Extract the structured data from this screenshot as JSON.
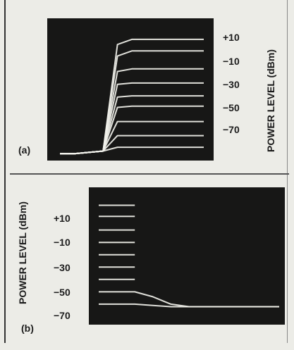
{
  "chart_data": [
    {
      "type": "line",
      "panel_label": "(a)",
      "ylabel": "POWER LEVEL (dBm)",
      "ylabel_side": "right",
      "yticks": [
        "+10",
        "−10",
        "−30",
        "−50",
        "−70"
      ],
      "ytick_values": [
        10,
        -10,
        -30,
        -50,
        -70
      ],
      "ylim": [
        -82,
        20
      ],
      "x": [
        0,
        1,
        2,
        3,
        4,
        5,
        6,
        7,
        8,
        9,
        10
      ],
      "xlim": [
        0,
        10
      ],
      "series": [
        {
          "values": [
            -81,
            -81,
            -80,
            -79,
            4,
            8,
            8,
            8,
            8,
            8,
            8
          ]
        },
        {
          "values": [
            -81,
            -81,
            -80,
            -79,
            -5,
            -1,
            -1,
            -1,
            -1,
            -1,
            -1
          ]
        },
        {
          "values": [
            -81,
            -81,
            -80,
            -79,
            -17,
            -15,
            -15,
            -15,
            -15,
            -15,
            -15
          ]
        },
        {
          "values": [
            -81,
            -81,
            -80,
            -79,
            -27,
            -26,
            -26,
            -26,
            -26,
            -26,
            -26
          ]
        },
        {
          "values": [
            -81,
            -81,
            -80,
            -79,
            -37,
            -36,
            -36,
            -36,
            -36,
            -36,
            -36
          ]
        },
        {
          "values": [
            -81,
            -81,
            -80,
            -79,
            -45,
            -44,
            -44,
            -44,
            -44,
            -44,
            -44
          ]
        },
        {
          "values": [
            -81,
            -81,
            -80,
            -79,
            -56,
            -56,
            -56,
            -56,
            -56,
            -56,
            -56
          ]
        },
        {
          "values": [
            -81,
            -81,
            -80,
            -79,
            -67,
            -67,
            -67,
            -67,
            -67,
            -67,
            -67
          ]
        },
        {
          "values": [
            -81,
            -81,
            -80,
            -79,
            -76,
            -76,
            -76,
            -76,
            -76,
            -76,
            -76
          ]
        }
      ],
      "trace_color": "#f2f2ec",
      "background_color": "#171716",
      "grid": false
    },
    {
      "type": "line",
      "panel_label": "(b)",
      "ylabel": "POWER LEVEL (dBm)",
      "ylabel_side": "left",
      "yticks": [
        "+10",
        "−10",
        "−30",
        "−50",
        "−70"
      ],
      "ytick_values": [
        10,
        -10,
        -30,
        -50,
        -70
      ],
      "ylim": [
        -82,
        20
      ],
      "x": [
        0,
        1,
        2,
        3,
        4,
        5,
        6,
        7,
        8,
        9,
        10
      ],
      "xlim": [
        0,
        10
      ],
      "series": [
        {
          "values": [
            10,
            10,
            10,
            null,
            null,
            null,
            null,
            null,
            null,
            null,
            null
          ]
        },
        {
          "values": [
            1,
            1,
            1,
            null,
            null,
            null,
            null,
            null,
            null,
            null,
            null
          ]
        },
        {
          "values": [
            -10,
            -10,
            -10,
            null,
            null,
            null,
            null,
            null,
            null,
            null,
            null
          ]
        },
        {
          "values": [
            -20,
            -20,
            -20,
            null,
            null,
            null,
            null,
            null,
            null,
            null,
            null
          ]
        },
        {
          "values": [
            -30,
            -30,
            -30,
            null,
            null,
            null,
            null,
            null,
            null,
            null,
            null
          ]
        },
        {
          "values": [
            -40,
            -40,
            -40,
            null,
            null,
            null,
            null,
            null,
            null,
            null,
            null
          ]
        },
        {
          "values": [
            -50,
            -50,
            -50,
            null,
            null,
            null,
            null,
            null,
            null,
            null,
            null
          ]
        },
        {
          "values": [
            -60,
            -60,
            -60,
            -64,
            -70,
            -72,
            -72,
            -72,
            -72,
            -72,
            -72
          ]
        },
        {
          "values": [
            -70,
            -70,
            -70,
            -71,
            -72,
            -72,
            -72,
            -72,
            -72,
            -72,
            -72
          ]
        }
      ],
      "trace_color": "#f2f2ec",
      "background_color": "#171716",
      "grid": false
    }
  ]
}
